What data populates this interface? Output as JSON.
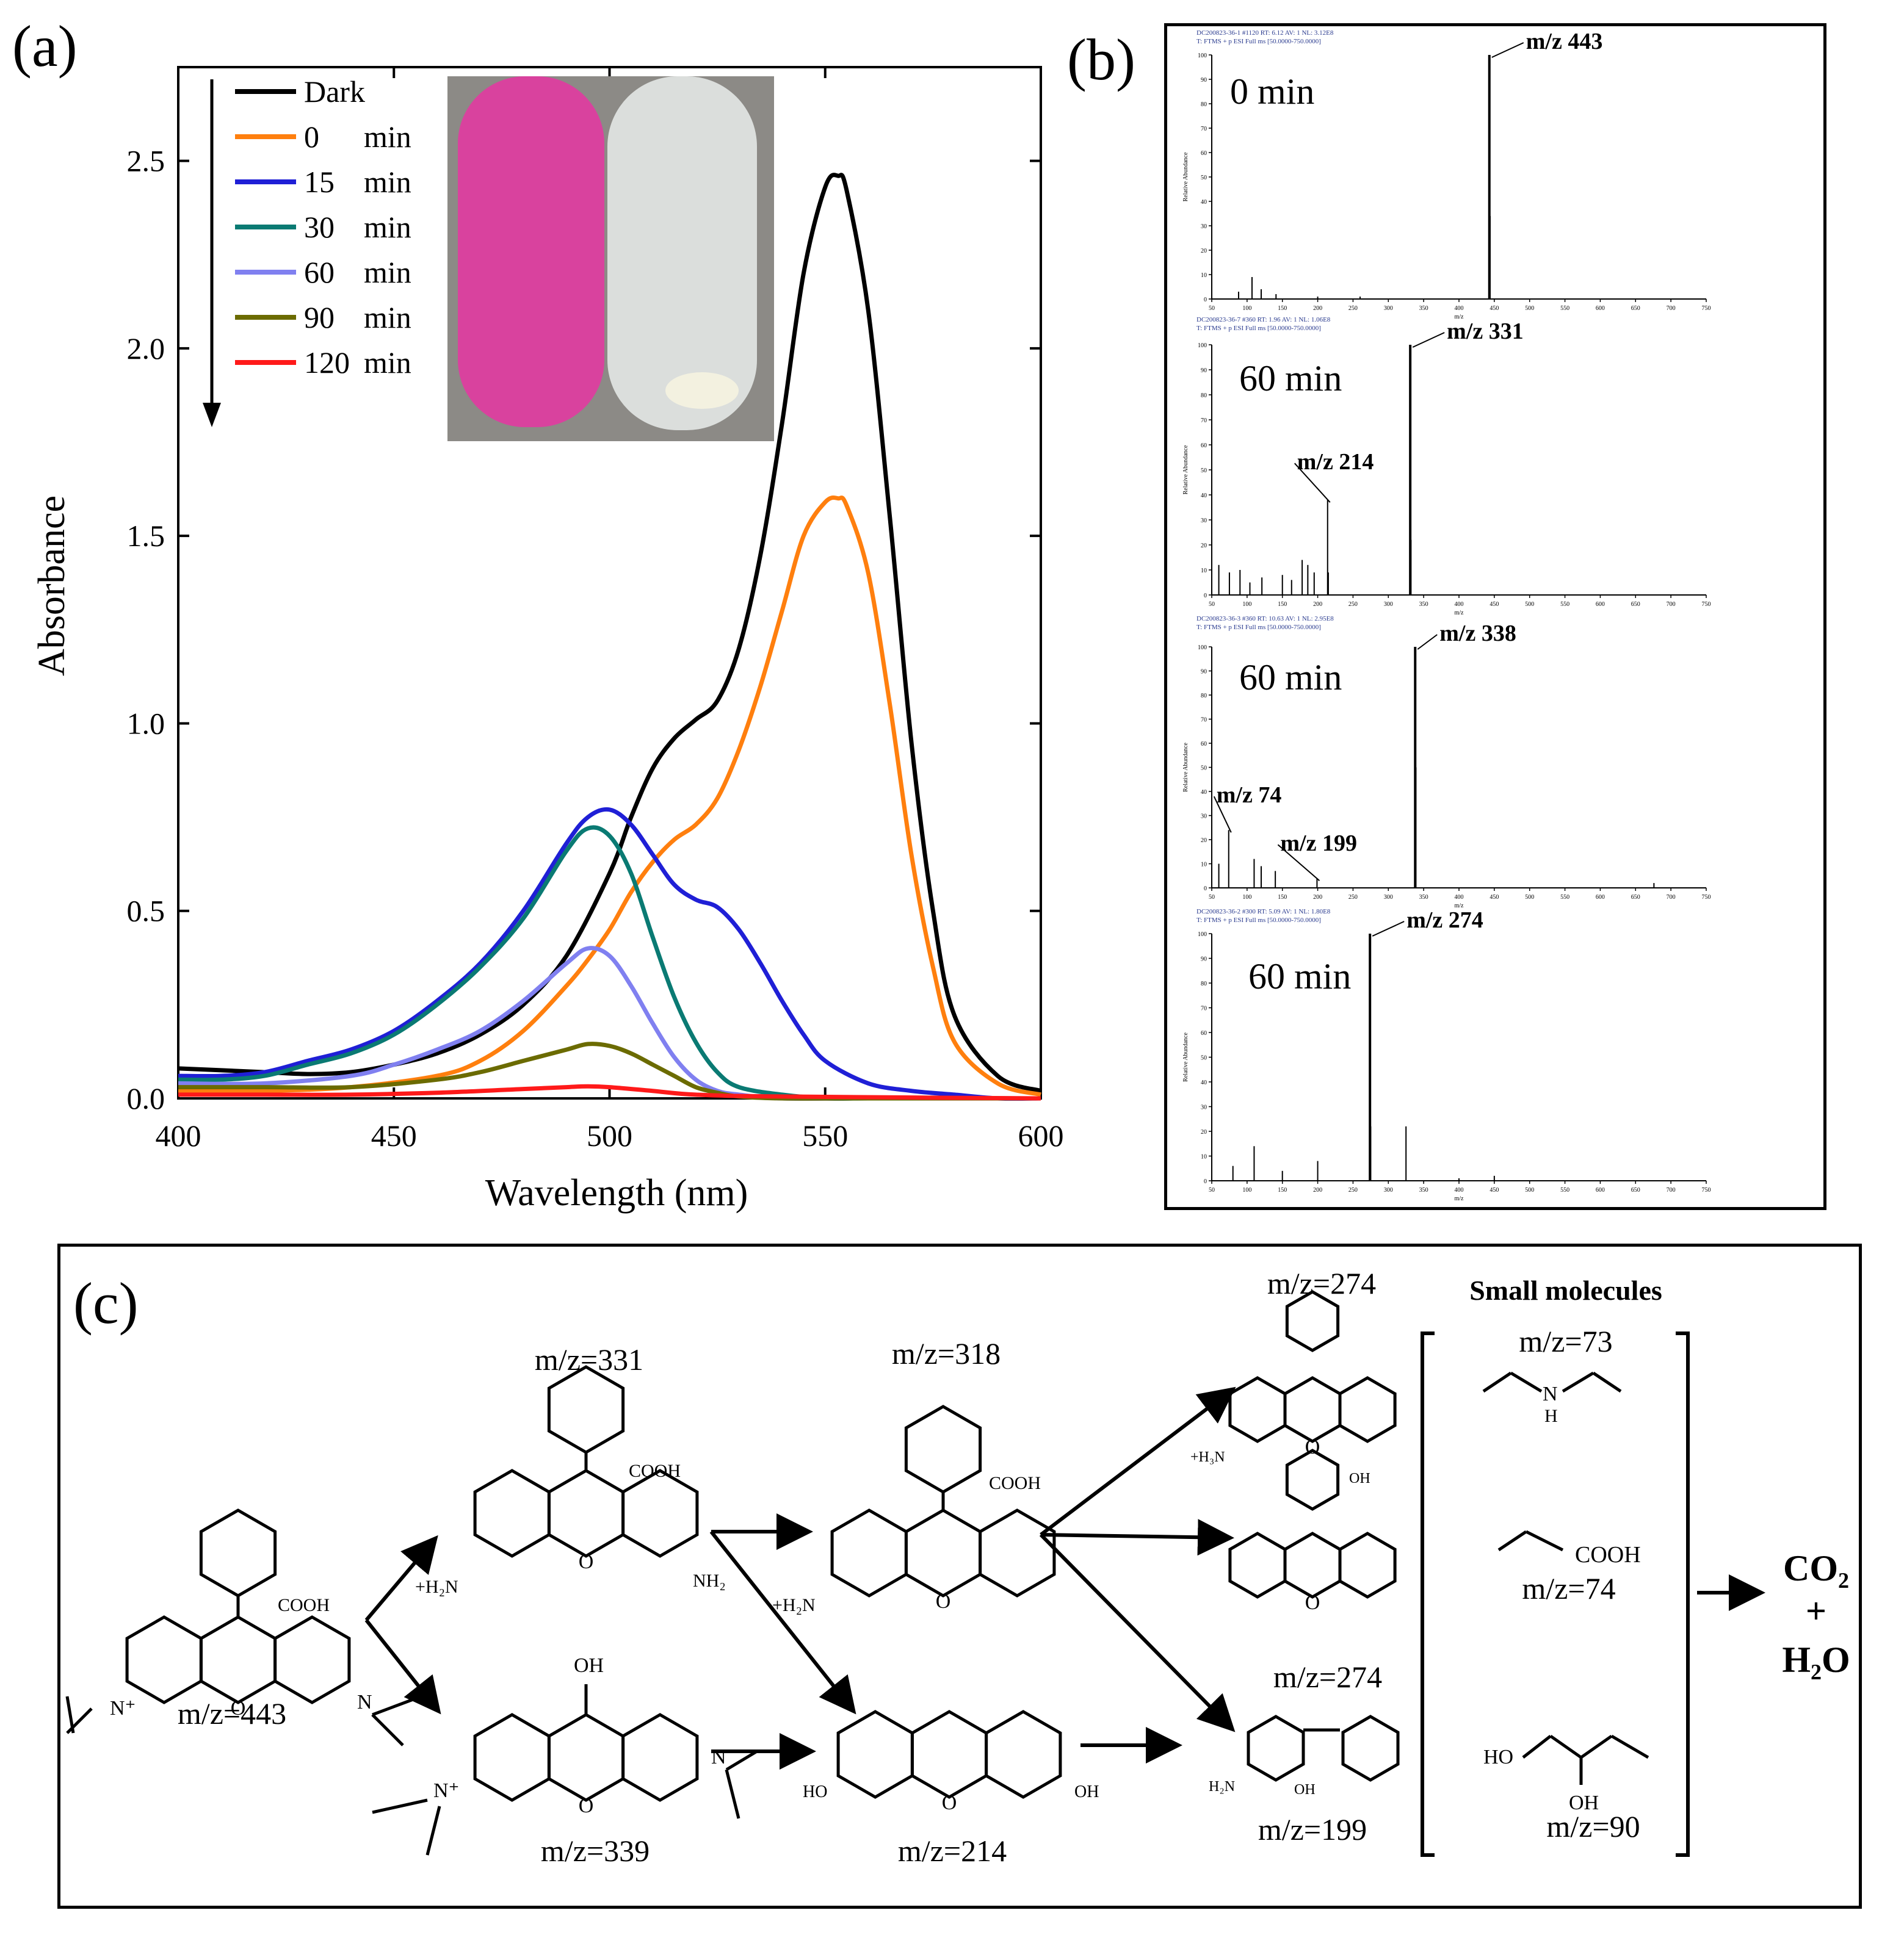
{
  "panel_a": {
    "label": "(a)",
    "chart_data": {
      "type": "line",
      "title": "",
      "xlabel": "Wavelength (nm)",
      "ylabel": "Absorbance",
      "xlim": [
        400,
        600
      ],
      "ylim": [
        0,
        2.75
      ],
      "xticks": [
        400,
        450,
        500,
        550,
        600
      ],
      "yticks": [
        0.0,
        0.5,
        1.0,
        1.5,
        2.0,
        2.5
      ],
      "xtick_labels": [
        "400",
        "450",
        "500",
        "550",
        "600"
      ],
      "ytick_labels": [
        "0.0",
        "0.5",
        "1.0",
        "1.5",
        "2.0",
        "2.5"
      ],
      "legend_position": "top-left",
      "series": [
        {
          "name": "Dark",
          "time": "",
          "unit": "",
          "color": "#000000",
          "x": [
            400,
            410,
            420,
            430,
            440,
            450,
            460,
            470,
            480,
            490,
            500,
            505,
            510,
            515,
            520,
            525,
            530,
            535,
            540,
            545,
            550,
            553,
            555,
            560,
            565,
            570,
            575,
            580,
            590,
            600
          ],
          "y": [
            0.08,
            0.075,
            0.07,
            0.065,
            0.07,
            0.09,
            0.12,
            0.17,
            0.25,
            0.38,
            0.6,
            0.75,
            0.88,
            0.96,
            1.01,
            1.06,
            1.2,
            1.45,
            1.8,
            2.2,
            2.43,
            2.46,
            2.42,
            2.1,
            1.55,
            0.95,
            0.5,
            0.22,
            0.06,
            0.02
          ]
        },
        {
          "name": "0",
          "time": "0",
          "unit": "min",
          "color": "#ff7f0e",
          "x": [
            400,
            420,
            440,
            460,
            470,
            480,
            490,
            495,
            500,
            505,
            510,
            515,
            520,
            525,
            530,
            535,
            540,
            545,
            550,
            553,
            555,
            560,
            565,
            570,
            575,
            580,
            590,
            600
          ],
          "y": [
            0.02,
            0.02,
            0.03,
            0.06,
            0.1,
            0.18,
            0.3,
            0.37,
            0.45,
            0.55,
            0.63,
            0.69,
            0.73,
            0.8,
            0.93,
            1.1,
            1.3,
            1.5,
            1.59,
            1.6,
            1.58,
            1.4,
            1.05,
            0.65,
            0.35,
            0.15,
            0.04,
            0.01
          ]
        },
        {
          "name": "15",
          "time": "15",
          "unit": "min",
          "color": "#1f1fd6",
          "x": [
            400,
            410,
            420,
            430,
            440,
            450,
            460,
            470,
            480,
            490,
            495,
            500,
            505,
            510,
            515,
            520,
            525,
            530,
            535,
            540,
            545,
            550,
            560,
            570,
            580,
            590,
            600
          ],
          "y": [
            0.06,
            0.06,
            0.07,
            0.1,
            0.13,
            0.18,
            0.26,
            0.36,
            0.5,
            0.68,
            0.75,
            0.77,
            0.73,
            0.65,
            0.57,
            0.53,
            0.51,
            0.45,
            0.36,
            0.26,
            0.17,
            0.1,
            0.04,
            0.02,
            0.01,
            0.0,
            0.0
          ]
        },
        {
          "name": "30",
          "time": "30",
          "unit": "min",
          "color": "#0a7a73",
          "x": [
            400,
            410,
            420,
            430,
            440,
            450,
            460,
            470,
            480,
            490,
            495,
            500,
            505,
            510,
            515,
            520,
            525,
            530,
            540,
            550,
            560,
            580,
            600
          ],
          "y": [
            0.05,
            0.05,
            0.06,
            0.09,
            0.12,
            0.17,
            0.25,
            0.35,
            0.48,
            0.66,
            0.72,
            0.7,
            0.6,
            0.43,
            0.27,
            0.15,
            0.07,
            0.03,
            0.01,
            0.0,
            0.0,
            0.0,
            0.0
          ]
        },
        {
          "name": "60",
          "time": "60",
          "unit": "min",
          "color": "#8080f0",
          "x": [
            400,
            420,
            440,
            450,
            460,
            470,
            480,
            490,
            495,
            500,
            505,
            510,
            515,
            520,
            525,
            530,
            540,
            560,
            600
          ],
          "y": [
            0.04,
            0.04,
            0.06,
            0.09,
            0.13,
            0.18,
            0.26,
            0.36,
            0.4,
            0.38,
            0.3,
            0.2,
            0.11,
            0.05,
            0.02,
            0.01,
            0.0,
            0.0,
            0.0
          ]
        },
        {
          "name": "90",
          "time": "90",
          "unit": "min",
          "color": "#6b6b00",
          "x": [
            400,
            420,
            440,
            460,
            470,
            480,
            490,
            495,
            500,
            505,
            510,
            515,
            520,
            525,
            530,
            540,
            560,
            600
          ],
          "y": [
            0.03,
            0.03,
            0.03,
            0.05,
            0.07,
            0.1,
            0.13,
            0.145,
            0.14,
            0.12,
            0.09,
            0.06,
            0.03,
            0.015,
            0.005,
            0.0,
            0.0,
            0.0
          ]
        },
        {
          "name": "120",
          "time": "120",
          "unit": "min",
          "color": "#ff1a1a",
          "x": [
            400,
            420,
            440,
            460,
            480,
            490,
            495,
            500,
            510,
            520,
            540,
            600
          ],
          "y": [
            0.01,
            0.01,
            0.01,
            0.015,
            0.025,
            0.03,
            0.032,
            0.03,
            0.02,
            0.01,
            0.005,
            0.0
          ]
        }
      ]
    },
    "inset_photo": {
      "left_color": "#d9429e",
      "right_color": "#dfe3e0",
      "background": "#8c8a86"
    }
  },
  "panel_b": {
    "label": "(b)",
    "spectra": [
      {
        "time": "0 min",
        "header1": "DC200823-36-1 #1120  RT: 6.12  AV: 1  NL: 3.12E8",
        "header2": "T: FTMS + p ESI Full ms [50.0000-750.0000]",
        "y_axis_title": "Relative Abundance",
        "x_axis_title": "m/z",
        "x_ticks": [
          "50",
          "100",
          "150",
          "200",
          "250",
          "300",
          "350",
          "400",
          "450",
          "500",
          "550",
          "600",
          "650",
          "700",
          "750"
        ],
        "y_ticks": [
          "0",
          "10",
          "20",
          "30",
          "40",
          "50",
          "60",
          "70",
          "80",
          "90",
          "100"
        ],
        "xlim": [
          50,
          750
        ],
        "peaks": [
          [
            443,
            100
          ],
          [
            444,
            34
          ],
          [
            107,
            9
          ],
          [
            88,
            3
          ],
          [
            120,
            4
          ],
          [
            141,
            2
          ],
          [
            200,
            1
          ],
          [
            260,
            1
          ]
        ],
        "annotations": [
          {
            "text": "m/z  443",
            "mz": 443
          }
        ]
      },
      {
        "time": "60 min",
        "header1": "DC200823-36-7 #360  RT: 1.96  AV: 1  NL: 1.06E8",
        "header2": "T: FTMS + p ESI Full ms [50.0000-750.0000]",
        "y_axis_title": "Relative Abundance",
        "x_axis_title": "m/z",
        "x_ticks": [
          "50",
          "100",
          "150",
          "200",
          "250",
          "300",
          "350",
          "400",
          "450",
          "500",
          "550",
          "600",
          "650",
          "700",
          "750"
        ],
        "y_ticks": [
          "0",
          "10",
          "20",
          "30",
          "40",
          "50",
          "60",
          "70",
          "80",
          "90",
          "100"
        ],
        "xlim": [
          50,
          750
        ],
        "peaks": [
          [
            331,
            100
          ],
          [
            332,
            22
          ],
          [
            214,
            38
          ],
          [
            215,
            9
          ],
          [
            60,
            12
          ],
          [
            75,
            9
          ],
          [
            90,
            10
          ],
          [
            104,
            5
          ],
          [
            121,
            7
          ],
          [
            150,
            8
          ],
          [
            178,
            14
          ],
          [
            186,
            12
          ],
          [
            195,
            9
          ],
          [
            163,
            6
          ]
        ],
        "annotations": [
          {
            "text": "m/z  331",
            "mz": 331
          },
          {
            "text": "m/z  214",
            "mz": 214
          }
        ]
      },
      {
        "time": "60 min",
        "header1": "DC200823-36-3 #360  RT: 10.63  AV: 1  NL: 2.95E8",
        "header2": "T: FTMS + p ESI Full ms [50.0000-750.0000]",
        "y_axis_title": "Relative Abundance",
        "x_axis_title": "m/z",
        "x_ticks": [
          "50",
          "100",
          "150",
          "200",
          "250",
          "300",
          "350",
          "400",
          "450",
          "500",
          "550",
          "600",
          "650",
          "700",
          "750"
        ],
        "y_ticks": [
          "0",
          "10",
          "20",
          "30",
          "40",
          "50",
          "60",
          "70",
          "80",
          "90",
          "100"
        ],
        "xlim": [
          50,
          750
        ],
        "peaks": [
          [
            338,
            100
          ],
          [
            339,
            50
          ],
          [
            74,
            24
          ],
          [
            60,
            10
          ],
          [
            110,
            12
          ],
          [
            120,
            9
          ],
          [
            140,
            7
          ],
          [
            199,
            4
          ],
          [
            676,
            2
          ]
        ],
        "annotations": [
          {
            "text": "m/z 338",
            "mz": 338
          },
          {
            "text": "m/z 74",
            "mz": 74
          },
          {
            "text": "m/z 199",
            "mz": 199
          }
        ]
      },
      {
        "time": "60 min",
        "header1": "DC200823-36-2 #300  RT: 5.09  AV: 1  NL: 1.80E8",
        "header2": "T: FTMS + p ESI Full ms [50.0000-750.0000]",
        "y_axis_title": "Relative Abundance",
        "x_axis_title": "m/z",
        "x_ticks": [
          "50",
          "100",
          "150",
          "200",
          "250",
          "300",
          "350",
          "400",
          "450",
          "500",
          "550",
          "600",
          "650",
          "700",
          "750"
        ],
        "y_ticks": [
          "0",
          "10",
          "20",
          "30",
          "40",
          "50",
          "60",
          "70",
          "80",
          "90",
          "100"
        ],
        "xlim": [
          50,
          750
        ],
        "peaks": [
          [
            274,
            100
          ],
          [
            275,
            22
          ],
          [
            325,
            22
          ],
          [
            200,
            8
          ],
          [
            110,
            14
          ],
          [
            80,
            6
          ],
          [
            150,
            4
          ],
          [
            400,
            1
          ],
          [
            450,
            2
          ]
        ],
        "annotations": [
          {
            "text": "m/z  274",
            "mz": 274
          }
        ]
      }
    ]
  },
  "panel_c": {
    "label": "(c)",
    "mz_443": "m/z=443",
    "mz_331": "m/z=331",
    "mz_339": "m/z=339",
    "mz_318": "m/z=318",
    "mz_214": "m/z=214",
    "mz_274_top": "m/z=274",
    "mz_274_mid": "m/z=274",
    "mz_199": "m/z=199",
    "small_molecules_title": "Small molecules",
    "mz_73": "m/z=73",
    "mz_74": "m/z=74",
    "mz_90": "m/z=90",
    "atom_cooh": "COOH",
    "atom_oh": "OH",
    "atom_o": "O",
    "atom_n": "N",
    "atom_nh": "H",
    "atom_h2n_plus": "+H₂N",
    "atom_nh2": "NH₂",
    "atom_h3n_plus": "+H₃N",
    "atom_h2n": "H₂N",
    "atom_ho": "HO",
    "atom_n_plus": "N⁺",
    "product_co2": "CO₂",
    "product_plus": "+",
    "product_h2o": "H₂O"
  }
}
